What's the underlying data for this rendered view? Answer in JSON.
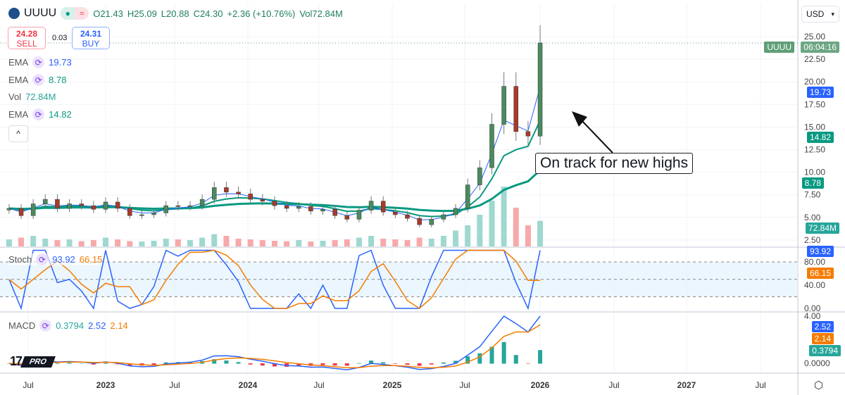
{
  "header": {
    "symbol": "UUUU",
    "open": "O21.43",
    "high": "H25.09",
    "low": "L20.88",
    "close": "C24.30",
    "change": "+2.36 (+10.76%)",
    "vol_label": "Vol",
    "vol_value": "72.84M"
  },
  "trade": {
    "sell_price": "24.28",
    "sell_label": "SELL",
    "spread": "0.03",
    "buy_price": "24.31",
    "buy_label": "BUY"
  },
  "indicators": [
    {
      "name": "EMA",
      "value": "19.73",
      "color": "#2962ff"
    },
    {
      "name": "EMA",
      "value": "8.78",
      "color": "#089981"
    },
    {
      "name": "Vol",
      "value": "72.84M",
      "color": "#26a69a"
    },
    {
      "name": "EMA",
      "value": "14.82",
      "color": "#089981"
    }
  ],
  "stoch": {
    "name": "Stoch",
    "k": "93.92",
    "d": "66.15"
  },
  "macd": {
    "name": "MACD",
    "hist": "0.3794",
    "macd": "2.52",
    "signal": "2.14"
  },
  "axis": {
    "currency": "USD",
    "price_ticks": [
      "25.00",
      "22.50",
      "20.00",
      "17.50",
      "15.00",
      "12.50",
      "10.00",
      "7.50",
      "5.00",
      "2.50"
    ],
    "stoch_ticks": [
      "80.00",
      "40.00",
      "0.00"
    ],
    "macd_ticks": [
      "4.00",
      "0.0000"
    ],
    "tags": {
      "symbol": "UUUU",
      "countdown": "06:04:16",
      "ema_fast": "19.73",
      "ema_mid": "14.82",
      "ema_slow": "8.78",
      "volume": "72.84M",
      "stoch_k": "93.92",
      "stoch_d": "66.15",
      "macd": "2.52",
      "signal": "2.14",
      "hist": "0.3794"
    },
    "time_labels": [
      "Jul",
      "2023",
      "Jul",
      "2024",
      "Jul",
      "2025",
      "Jul",
      "2026",
      "Jul",
      "2027",
      "Jul"
    ]
  },
  "annotation": "On track for new highs",
  "branding": {
    "logo": "TV",
    "pro": "PRO"
  },
  "colors": {
    "up": "#4a8a5e",
    "down": "#a83a2a",
    "ema_fast": "#2962ff",
    "ema_mid": "#089981",
    "stoch_k": "#2962ff",
    "stoch_d": "#f57c00"
  },
  "chart_data": {
    "type": "candlestick",
    "interval": "monthly approximation",
    "start": "2022-05",
    "close": [
      6.0,
      5.2,
      6.5,
      7.0,
      6.0,
      6.5,
      6.3,
      5.9,
      6.7,
      6.0,
      5.2,
      5.3,
      5.5,
      6.3,
      6.2,
      6.3,
      7.0,
      8.3,
      7.8,
      7.6,
      7.0,
      6.8,
      6.3,
      6.0,
      6.2,
      5.7,
      5.9,
      5.2,
      4.8,
      5.8,
      6.8,
      5.6,
      5.3,
      4.9,
      4.2,
      4.8,
      5.3,
      6.0,
      8.6,
      10.5,
      15.3,
      19.5,
      14.5,
      14.0,
      24.3
    ],
    "volume_m": [
      20,
      25,
      30,
      22,
      18,
      20,
      15,
      18,
      25,
      20,
      15,
      14,
      16,
      22,
      20,
      18,
      25,
      35,
      30,
      22,
      20,
      18,
      16,
      15,
      18,
      14,
      16,
      18,
      20,
      25,
      30,
      22,
      20,
      18,
      25,
      22,
      30,
      45,
      60,
      90,
      130,
      170,
      110,
      60,
      72.84
    ],
    "price_range": [
      0,
      27.5
    ]
  }
}
